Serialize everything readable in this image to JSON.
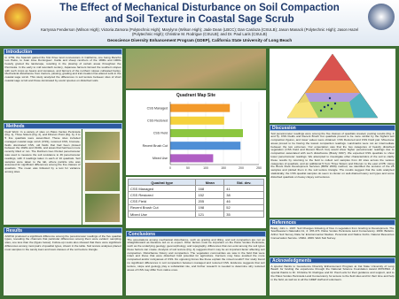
{
  "header": {
    "title": "The Effect of Mechanical Disturbance on Soil Compaction and Soil Texture in Coastal Sage Scrub",
    "authors": "Karryssa Fenderson (Wilson High); Victoria Zamora (Polytechnic High); Marylynn (Wilson High); Jade Dean (LBCC); Dan Cardoza (CSULB); Jason Manack (Polytechnic High); Jason Hazel (Polytechnic High); Christine M. Rodrigue (CSULB); and Dr. Paul Laris (CSULB)",
    "affiliation": "Geoscience Diversity Enhancement Program (GDEP), California State University of Long Beach"
  },
  "sections": {
    "introduction": {
      "heading": "Introduction",
      "text": "In 1769, the Spanish gained the first three land concessions in California, one being Rancho Los Palos, to Juan Jose Dominguez. Cattle and sheep ranchers of the 1800s and 1900s heavily grazed the landscape, resulting in the plowing of certain areas throughout the Peninsula. In the early to mid twentieth century, Japanese farmers farmed the southern slopes with such crops as beans and tomatoes, and farmers of the northern slopes cultivated barley. Mechanical disturbance from tractors, plowing, grading and trail creation has altered soils in the coastal sage scrub. This study analyzed the differences in soil texture between sites of short coastal sage scrub and those dominated by exotic species on disturbed soils."
    },
    "methods": {
      "heading": "Methods",
      "text": "Field Work: In a variety of sites on Palos Verdes Peninsula (Fig. 1), Three Sisters (Fig. 2), and Filiorum Point (Fig. 3), 3 to 5 line quadrats were assembled. These sites included managed coastal sage scrub (CSS), restored CSS, bromate-fields dominated CSS, old fields that had been plowed between the 1920s and 1940s, and areas that had been more recently tilled or run. The Dunham Geo Pocket penetrometer was used to measure the soil resistance to 46 penetrometer readings, with 3 readings taken in each of 10 quadrats. Soil samples were taken to the lab, where particle size was assessed for significant differences among the five classes of quadrats. The mean was followed by a test for variance among sites."
    },
    "results": {
      "heading": "Results",
      "text": "ANOVA produced a significant difference among the penetrometer readings of the five quadrat types, revealing the channels that particular differences among them were evident: sampling sites, one less than the (figure below). Follow-up t-tests also showed that there were significant differences among most pairs of quadrat types, shown in the table. Soil texture analyses placed most samples in the sandy loam and loam classes of the soil texture triangle."
    },
    "conclusions": {
      "heading": "Conclusions",
      "text": "The associations among mechanical disturbance, such as grazing and tilling, and soil compaction are not as straightforward as literature led us to expect. Other factors must be important on the Palos Verdes Peninsula, such as the underlying geology, geomorphology, and topography, differences that can exist among the soil types these factors can create. Analysis of soil texture (Fig. 4) suggests that it may be an important factor affecting soil compaction. Disturbance history and compaction. The vegetation communities we saw in the field that were intact and those that were disturbed hold potential for agriculture. Farmers may have avoided the more compacted and/or rockyareas of CSS. Do opposing forces like these explain the mixed results? Our study found no significant differences in soil compaction between managed and restored CSS. Evidence suggests that soil texture, slope and geology play a substantial role, and further research is needed to determine why restored areas of CSS may differ from native ones."
    },
    "discussion": {
      "heading": "Discussion",
      "text": "Soil penetrometer readings were among the five classes of quadrats created, pooling results (Fig. 4 and 5). CSS Fields and Recent Brush Cut quadrats proved to be more similar by the highest soil compaction figures, and lower values were obtained. CSS Restored and CSS Field pair. Mixed-use areas proved to be having the lowest compaction readings. Landmarks were not an intermediate between the two extremes. Our expectation was that the two categories of heavily disturbed vegetation (CSS Field and Recent Brush Cut) would show higher penetrometer readings due to compaction associated with such disturbance (Brady 1997). We expected CSS quadrats to show lower penetrometer readings. We attempted to investigate other characteristics of the soil to clarify these results by returning to the field to collect soil samples from 20 sites across the various categories of quadrats, and an additional 5 from Three Sisters and Filiorum to the east of PB. Using the Brock Rock Development Services (BRW 2009) method, we identified the textures of the 25 samples and plotted them in the soil texture triangle. The results suggest that the soils analyzed statistically, the CSS quadrat samples do seem to cluster on well-drained loamy soil types and some disturbed quadrats on heavy clayey soil textures."
    },
    "references": {
      "heading": "References",
      "text": "Brady, John L. 1997. Soil Changes following of fires in vegetation from Grazing to Development. The Southwestern Naturalist 41, 4: 478-473. Palos Verdes Peninsula Land Conservancy. 2009. Bulletin. Arthur Soil Survey Data for Environmental Studies. Perennial and Native Forbs. Natural Resources Conservation Service. USDA. 2009. Web Soil Survey."
    },
    "acknowledgments": {
      "heading": "Acknowledgments",
      "text": "A special thanks to Geoscience Diversity Enhancement Program at Cal State University of Long Beach for funding the experience through the National Science Foundation Award #0703542. A special thanks to Dr. Christine M. Rodrigue and Dr. Paul Laris for their guidance and support, and to the Palos Verdes Peninsula Land Conservancy for access to the field sites and for their time and help in the field, as well as to all the GDEP staff and volunteers."
    }
  },
  "figure": {
    "title": "Quadrant Map Site",
    "series": [
      {
        "name": "CSS Managed",
        "color": "#f39a2b",
        "value": 168
      },
      {
        "name": "CSS Restored",
        "color": "#f5d23c",
        "value": 152
      },
      {
        "name": "CSS Field",
        "color": "#8cc63f",
        "value": 205
      },
      {
        "name": "Recent Brush Cut",
        "color": "#4f8fd6",
        "value": 198
      },
      {
        "name": "Mixed Use",
        "color": "#b05fc4",
        "value": 121
      }
    ],
    "xlim": [
      0,
      250
    ],
    "xticks": [
      0,
      50,
      100,
      150,
      200,
      250
    ]
  },
  "table": {
    "header": [
      "Quadrat type",
      "Mean",
      "Std. dev."
    ],
    "rows": [
      [
        "CSS Managed",
        "168",
        "41"
      ],
      [
        "CSS Restored",
        "152",
        "38"
      ],
      [
        "CSS Field",
        "205",
        "46"
      ],
      [
        "Recent Brush Cut",
        "198",
        "52"
      ],
      [
        "Mixed Use",
        "121",
        "35"
      ]
    ]
  }
}
